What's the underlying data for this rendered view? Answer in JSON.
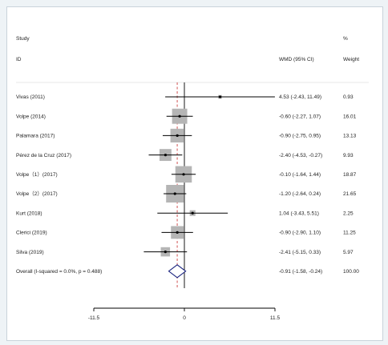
{
  "chart_data": {
    "type": "forest",
    "header": {
      "study_label": "Study",
      "id_label": "ID",
      "effect_label": "WMD (95% CI)",
      "percent_label": "%",
      "weight_label": "Weight"
    },
    "studies": [
      {
        "id": "Vivas (2011)",
        "wmd": 4.53,
        "lower": -2.43,
        "upper": 11.49,
        "ci_text": "4.53 (-2.43, 11.49)",
        "weight": "0.93",
        "arrow_right": true
      },
      {
        "id": "Volpe (2014)",
        "wmd": -0.6,
        "lower": -2.27,
        "upper": 1.07,
        "ci_text": "-0.60 (-2.27, 1.07)",
        "weight": "16.01"
      },
      {
        "id": "Palamara (2017)",
        "wmd": -0.9,
        "lower": -2.75,
        "upper": 0.95,
        "ci_text": "-0.90 (-2.75, 0.95)",
        "weight": "13.13"
      },
      {
        "id": "Pérez de la Cruz (2017)",
        "wmd": -2.4,
        "lower": -4.53,
        "upper": -0.27,
        "ci_text": "-2.40 (-4.53, -0.27)",
        "weight": "9.93"
      },
      {
        "id": "Volpe（1）(2017)",
        "wmd": -0.1,
        "lower": -1.64,
        "upper": 1.44,
        "ci_text": "-0.10 (-1.64, 1.44)",
        "weight": "18.87"
      },
      {
        "id": "Volpe（2）(2017)",
        "wmd": -1.2,
        "lower": -2.64,
        "upper": 0.24,
        "ci_text": "-1.20 (-2.64, 0.24)",
        "weight": "21.65"
      },
      {
        "id": "Kurt (2018)",
        "wmd": 1.04,
        "lower": -3.43,
        "upper": 5.51,
        "ci_text": "1.04 (-3.43, 5.51)",
        "weight": "2.25"
      },
      {
        "id": "Clerici (2019)",
        "wmd": -0.9,
        "lower": -2.9,
        "upper": 1.1,
        "ci_text": "-0.90 (-2.90, 1.10)",
        "weight": "11.25"
      },
      {
        "id": "Silva (2019)",
        "wmd": -2.41,
        "lower": -5.15,
        "upper": 0.33,
        "ci_text": "-2.41 (-5.15, 0.33)",
        "weight": "5.97"
      }
    ],
    "overall": {
      "id": "Overall  (I-squared = 0.0%, p = 0.488)",
      "wmd": -0.91,
      "lower": -1.58,
      "upper": -0.24,
      "ci_text": "-0.91 (-1.58, -0.24)",
      "weight": "100.00"
    },
    "x_ticks": [
      -11.5,
      0,
      11.5
    ],
    "x_tick_labels": [
      "-11.5",
      "0",
      "11.5"
    ],
    "x_range": [
      -11.5,
      11.5
    ],
    "colors": {
      "box": "#b5b5b5",
      "line": "#000000",
      "diamond": "#1a237e",
      "overall_line": "#c62828"
    }
  }
}
